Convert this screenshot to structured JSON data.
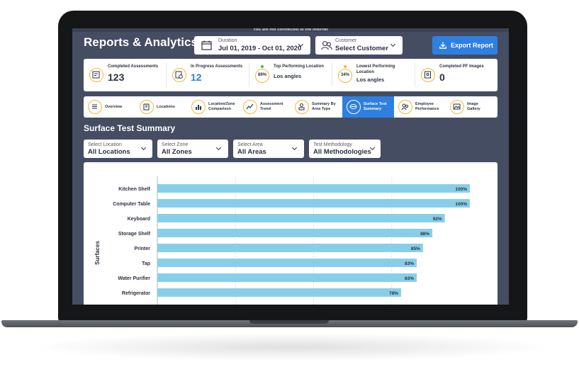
{
  "banner": "You are not connected to the internet",
  "page": {
    "title": "Reports & Analytics"
  },
  "header": {
    "duration": {
      "label": "Duration",
      "value": "Jul 01, 2019 - Oct 01, 2020",
      "icon": "calendar-icon"
    },
    "customer": {
      "label": "Customer",
      "value": "Select Customer",
      "icon": "users-icon"
    },
    "info_icon": "i",
    "export_label": "Export Report"
  },
  "stats": {
    "completed": {
      "label": "Completed Assessments",
      "value": "123"
    },
    "in_progress": {
      "label": "In Progress Assessments",
      "value": "12"
    },
    "top": {
      "label": "Top Performing Location",
      "percent": "89%",
      "location": "Los angles"
    },
    "lowest": {
      "label_line1": "Lowest Performing",
      "label_line2": "Location",
      "percent": "34%",
      "location": "Los angles"
    },
    "images": {
      "label": "Completed PF Images",
      "value": "0"
    }
  },
  "tabs": [
    {
      "line1": "Overview",
      "line2": ""
    },
    {
      "line1": "Locations",
      "line2": ""
    },
    {
      "line1": "Location/Zone",
      "line2": "Comparison"
    },
    {
      "line1": "Assessment",
      "line2": "Trend"
    },
    {
      "line1": "Summary By",
      "line2": "Area Type"
    },
    {
      "line1": "Surface Test",
      "line2": "Summary"
    },
    {
      "line1": "Employee",
      "line2": "Performance"
    },
    {
      "line1": "Image",
      "line2": "Gallery"
    }
  ],
  "active_tab": 5,
  "section": {
    "title": "Surface Test Summary"
  },
  "filters": [
    {
      "label": "Select Location",
      "value": "All Locations"
    },
    {
      "label": "Select Zone",
      "value": "All Zones"
    },
    {
      "label": "Select Area",
      "value": "All Areas"
    },
    {
      "label": "Test Methodology",
      "value": "All Methodologies"
    }
  ],
  "colors": {
    "accent": "#2f7fe0",
    "bar": "#87cfe9",
    "background": "#454d63",
    "ring": "#f4b73d"
  },
  "chart_data": {
    "type": "bar",
    "orientation": "horizontal",
    "ylabel": "Surfaces",
    "xlim": [
      0,
      100
    ],
    "grid": true,
    "categories": [
      "Kitchen Shelf",
      "Computer Table",
      "Keyboard",
      "Storage Shelf",
      "Printer",
      "Tap",
      "Water Purifier",
      "Refrigerator"
    ],
    "values": [
      100,
      100,
      92,
      88,
      85,
      83,
      83,
      78
    ],
    "data_labels": [
      "100%",
      "100%",
      "92%",
      "88%",
      "85%",
      "83%",
      "83%",
      "78%"
    ]
  }
}
